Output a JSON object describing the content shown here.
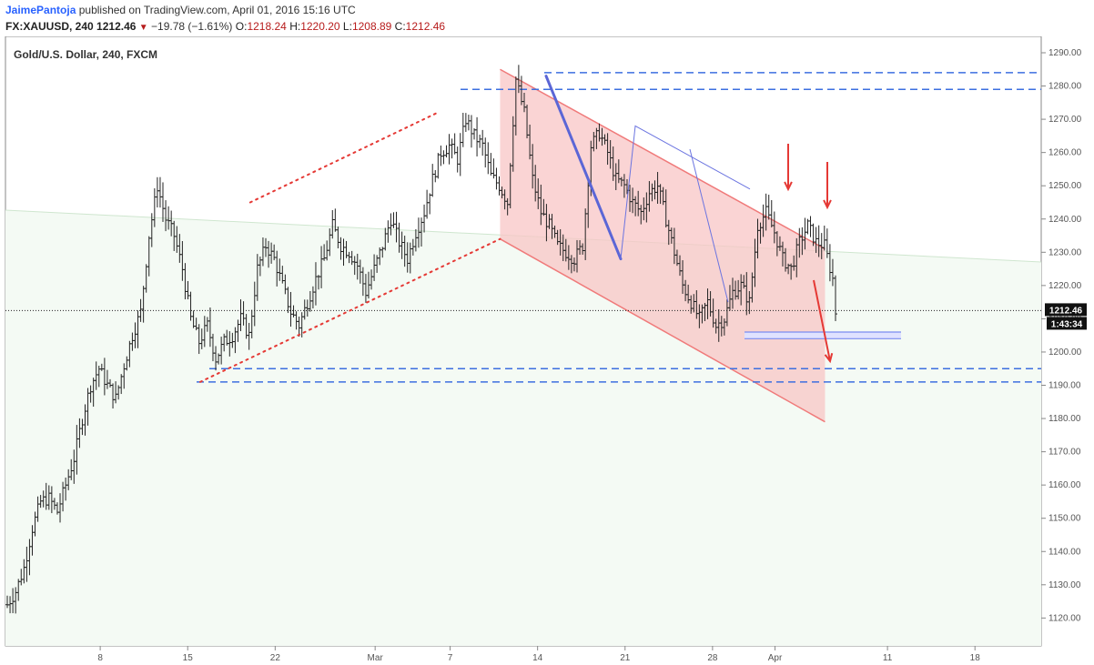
{
  "header": {
    "author": "JaimePantoja",
    "published_text": "published on TradingView.com, April 01, 2016 15:16 UTC",
    "symbol": "FX:XAUUSD, 240",
    "last": "1212.46",
    "change": "−19.78 (−1.61%)",
    "open_label": "O:",
    "open": "1218.24",
    "high_label": "H:",
    "high": "1220.20",
    "low_label": "L:",
    "low": "1208.89",
    "close_label": "C:",
    "close": "1212.46"
  },
  "chart_data": {
    "type": "candlestick-ohlc",
    "title": "Gold/U.S. Dollar, 240, FXCM",
    "y_range": [
      1115,
      1295
    ],
    "y_ticks": [
      1120,
      1130,
      1140,
      1150,
      1160,
      1170,
      1180,
      1190,
      1200,
      1210,
      1220,
      1230,
      1240,
      1250,
      1260,
      1270,
      1280,
      1290
    ],
    "x_ticks": [
      "8",
      "15",
      "22",
      "Mar",
      "7",
      "14",
      "21",
      "28",
      "Apr",
      "11",
      "18"
    ],
    "price_label": "1212.46",
    "countdown_label": "1:43:34",
    "colors": {
      "bars": "#222222",
      "channel_fill": "#f8c6c6",
      "channel_edge": "#f07a7a",
      "blue": "#3d6fe0",
      "red": "#e53935"
    },
    "price_anchors": [
      [
        0,
        1124
      ],
      [
        3,
        1128
      ],
      [
        6,
        1135
      ],
      [
        9,
        1147
      ],
      [
        12,
        1155
      ],
      [
        15,
        1156
      ],
      [
        18,
        1152
      ],
      [
        21,
        1160
      ],
      [
        24,
        1168
      ],
      [
        27,
        1180
      ],
      [
        30,
        1190
      ],
      [
        33,
        1195
      ],
      [
        36,
        1190
      ],
      [
        39,
        1186
      ],
      [
        42,
        1196
      ],
      [
        45,
        1205
      ],
      [
        48,
        1212
      ],
      [
        51,
        1235
      ],
      [
        54,
        1250
      ],
      [
        57,
        1240
      ],
      [
        60,
        1235
      ],
      [
        63,
        1225
      ],
      [
        66,
        1210
      ],
      [
        69,
        1203
      ],
      [
        72,
        1208
      ],
      [
        75,
        1198
      ],
      [
        78,
        1203
      ],
      [
        81,
        1205
      ],
      [
        84,
        1210
      ],
      [
        87,
        1205
      ],
      [
        90,
        1225
      ],
      [
        93,
        1232
      ],
      [
        96,
        1228
      ],
      [
        99,
        1220
      ],
      [
        102,
        1212
      ],
      [
        105,
        1208
      ],
      [
        108,
        1215
      ],
      [
        111,
        1222
      ],
      [
        114,
        1228
      ],
      [
        117,
        1238
      ],
      [
        120,
        1232
      ],
      [
        123,
        1230
      ],
      [
        126,
        1226
      ],
      [
        129,
        1218
      ],
      [
        132,
        1225
      ],
      [
        135,
        1232
      ],
      [
        138,
        1240
      ],
      [
        141,
        1233
      ],
      [
        144,
        1228
      ],
      [
        147,
        1236
      ],
      [
        150,
        1242
      ],
      [
        153,
        1252
      ],
      [
        156,
        1260
      ],
      [
        159,
        1262
      ],
      [
        162,
        1258
      ],
      [
        165,
        1270
      ],
      [
        168,
        1265
      ],
      [
        171,
        1262
      ],
      [
        174,
        1253
      ],
      [
        177,
        1250
      ],
      [
        180,
        1245
      ],
      [
        183,
        1282
      ],
      [
        186,
        1272
      ],
      [
        189,
        1252
      ],
      [
        192,
        1242
      ],
      [
        195,
        1238
      ],
      [
        198,
        1232
      ],
      [
        201,
        1230
      ],
      [
        204,
        1228
      ],
      [
        207,
        1232
      ],
      [
        210,
        1262
      ],
      [
        213,
        1266
      ],
      [
        216,
        1260
      ],
      [
        219,
        1252
      ],
      [
        222,
        1250
      ],
      [
        225,
        1245
      ],
      [
        228,
        1242
      ],
      [
        231,
        1248
      ],
      [
        234,
        1250
      ],
      [
        237,
        1240
      ],
      [
        240,
        1230
      ],
      [
        243,
        1220
      ],
      [
        246,
        1215
      ],
      [
        249,
        1210
      ],
      [
        252,
        1215
      ],
      [
        255,
        1208
      ],
      [
        258,
        1210
      ],
      [
        261,
        1218
      ],
      [
        264,
        1220
      ],
      [
        267,
        1215
      ],
      [
        270,
        1238
      ],
      [
        273,
        1242
      ],
      [
        276,
        1236
      ],
      [
        279,
        1228
      ],
      [
        282,
        1225
      ],
      [
        285,
        1233
      ],
      [
        288,
        1238
      ],
      [
        291,
        1233
      ],
      [
        294,
        1232
      ],
      [
        297,
        1222
      ],
      [
        298,
        1212
      ]
    ],
    "annotations": [
      {
        "type": "dotted-line",
        "color": "red",
        "from": [
          "2016-02-20",
          1245
        ],
        "to": [
          "2016-03-06",
          1272
        ]
      },
      {
        "type": "dotted-line",
        "color": "red",
        "from": [
          "2016-02-16",
          1191
        ],
        "to": [
          "2016-03-11",
          1234
        ]
      },
      {
        "type": "channel",
        "color": "red",
        "upper": [
          [
            "2016-03-11",
            1285
          ],
          [
            "2016-04-06",
            1231
          ]
        ],
        "lower": [
          [
            "2016-03-11",
            1234
          ],
          [
            "2016-04-06",
            1179
          ]
        ]
      },
      {
        "type": "dashed-line",
        "color": "blue",
        "price": 1284
      },
      {
        "type": "dashed-line",
        "color": "blue",
        "price": 1279
      },
      {
        "type": "dashed-line",
        "color": "blue",
        "price": 1195
      },
      {
        "type": "dashed-line",
        "color": "blue",
        "price": 1191
      },
      {
        "type": "double-line",
        "color": "blue",
        "prices": [
          1206,
          1204
        ]
      },
      {
        "type": "arrow",
        "color": "red",
        "direction": "down",
        "count": 3
      }
    ]
  }
}
